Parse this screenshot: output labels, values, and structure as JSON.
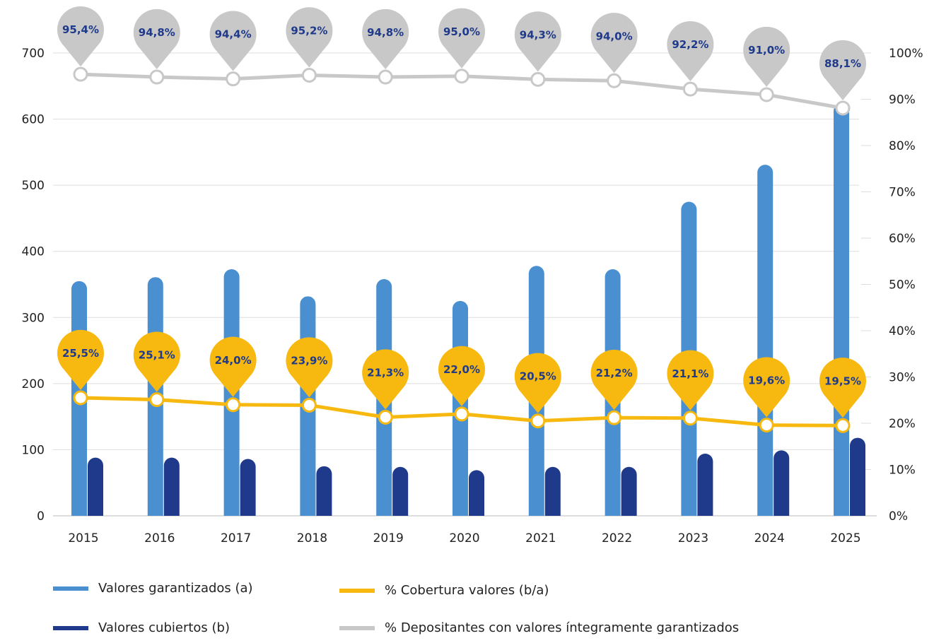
{
  "colors": {
    "valores_garantizados": "#4a8fd0",
    "valores_cubiertos": "#1f3a8a",
    "cobertura": "#f7b90f",
    "depositantes": "#c8c8c8",
    "grid": "#dddddd",
    "pin_label": "#1f3a8a"
  },
  "legend": {
    "valores_garantizados": "Valores garantizados (a)",
    "valores_cubiertos": "Valores cubiertos (b)",
    "cobertura": "% Cobertura valores (b/a)",
    "depositantes": "% Depositantes con valores íntegramente garantizados"
  },
  "chart_data": {
    "type": "bar",
    "categories": [
      "2015",
      "2016",
      "2017",
      "2018",
      "2019",
      "2020",
      "2021",
      "2022",
      "2023",
      "2024",
      "2025"
    ],
    "y_left": {
      "ticks": [
        "0",
        "100",
        "200",
        "300",
        "400",
        "500",
        "600",
        "700"
      ],
      "ylim": [
        0,
        700
      ]
    },
    "y_right": {
      "ticks": [
        "0%",
        "10%",
        "20%",
        "30%",
        "40%",
        "50%",
        "60%",
        "70%",
        "80%",
        "90%",
        "100%"
      ],
      "ylim": [
        0,
        100
      ]
    },
    "grid": true,
    "legend_position": "bottom",
    "series": [
      {
        "name": "Valores garantizados (a)",
        "type": "bar",
        "axis": "left",
        "values": [
          355,
          361,
          373,
          332,
          358,
          325,
          378,
          373,
          475,
          531,
          624
        ]
      },
      {
        "name": "Valores cubiertos (b)",
        "type": "bar",
        "axis": "left",
        "values": [
          88,
          88,
          86,
          75,
          74,
          69,
          74,
          74,
          94,
          99,
          118
        ]
      },
      {
        "name": "% Cobertura valores (b/a)",
        "type": "line",
        "axis": "right",
        "values": [
          25.5,
          25.1,
          24.0,
          23.9,
          21.3,
          22.0,
          20.5,
          21.2,
          21.1,
          19.6,
          19.5
        ],
        "labels": [
          "25,5%",
          "25,1%",
          "24,0%",
          "23,9%",
          "21,3%",
          "22,0%",
          "20,5%",
          "21,2%",
          "21,1%",
          "19,6%",
          "19,5%"
        ]
      },
      {
        "name": "% Depositantes con valores íntegramente garantizados",
        "type": "line",
        "axis": "right",
        "values": [
          95.4,
          94.8,
          94.4,
          95.2,
          94.8,
          95.0,
          94.3,
          94.0,
          92.2,
          91.0,
          88.1
        ],
        "labels": [
          "95,4%",
          "94,8%",
          "94,4%",
          "95,2%",
          "94,8%",
          "95,0%",
          "94,3%",
          "94,0%",
          "92,2%",
          "91,0%",
          "88,1%"
        ]
      }
    ]
  }
}
